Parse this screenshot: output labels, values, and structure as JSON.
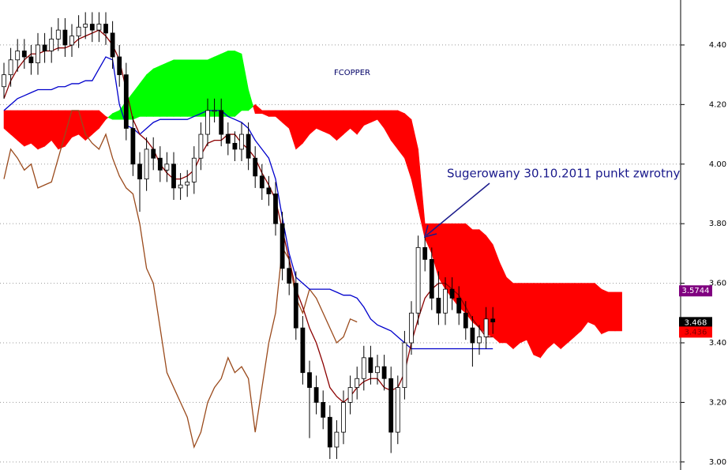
{
  "chart_data": {
    "type": "candlestick",
    "title": "FCOPPER",
    "annotation": "Sugerowany 30.10.2011 punkt zwrotny",
    "ylim": [
      2.973,
      4.551
    ],
    "yticks": [
      {
        "value": 3.0,
        "label": "3.00"
      },
      {
        "value": 3.2,
        "label": "3.20"
      },
      {
        "value": 3.4,
        "label": "3.40"
      },
      {
        "value": 3.6,
        "label": "3.60"
      },
      {
        "value": 3.8,
        "label": "3.80"
      },
      {
        "value": 4.0,
        "label": "4.00"
      },
      {
        "value": 4.2,
        "label": "4.20"
      },
      {
        "value": 4.4,
        "label": "4.40"
      }
    ],
    "grid": true,
    "candles": {
      "open": [
        4.26,
        4.3,
        4.35,
        4.38,
        4.36,
        4.34,
        4.4,
        4.38,
        4.42,
        4.45,
        4.4,
        4.43,
        4.46,
        4.47,
        4.45,
        4.47,
        4.44,
        4.36,
        4.3,
        4.12,
        4.0,
        3.95,
        4.05,
        4.02,
        3.98,
        4.0,
        3.92,
        3.93,
        3.94,
        4.02,
        4.1,
        4.18,
        4.18,
        4.1,
        4.07,
        4.05,
        4.1,
        4.02,
        3.96,
        3.92,
        3.9,
        3.8,
        3.65,
        3.6,
        3.45,
        3.3,
        3.25,
        3.2,
        3.15,
        3.05,
        3.1,
        3.2,
        3.25,
        3.28,
        3.35,
        3.3,
        3.32,
        3.28,
        3.1,
        3.25,
        3.4,
        3.5,
        3.72,
        3.68,
        3.55,
        3.5,
        3.58,
        3.55,
        3.5,
        3.45,
        3.4,
        3.42,
        3.48
      ],
      "high": [
        4.34,
        4.39,
        4.42,
        4.42,
        4.4,
        4.44,
        4.44,
        4.46,
        4.49,
        4.49,
        4.47,
        4.5,
        4.51,
        4.51,
        4.51,
        4.51,
        4.48,
        4.4,
        4.34,
        4.16,
        4.04,
        4.09,
        4.09,
        4.06,
        4.04,
        4.04,
        3.97,
        3.98,
        4.06,
        4.14,
        4.22,
        4.22,
        4.22,
        4.14,
        4.11,
        4.14,
        4.14,
        4.06,
        4.0,
        3.96,
        3.94,
        3.84,
        3.69,
        3.64,
        3.49,
        3.34,
        3.29,
        3.24,
        3.19,
        3.14,
        3.24,
        3.29,
        3.32,
        3.39,
        3.39,
        3.36,
        3.36,
        3.32,
        3.29,
        3.44,
        3.54,
        3.76,
        3.76,
        3.72,
        3.64,
        3.62,
        3.62,
        3.59,
        3.54,
        3.49,
        3.46,
        3.52,
        3.52
      ],
      "low": [
        4.22,
        4.26,
        4.31,
        4.32,
        4.3,
        4.3,
        4.34,
        4.34,
        4.38,
        4.36,
        4.36,
        4.39,
        4.42,
        4.41,
        4.41,
        4.4,
        4.32,
        4.26,
        4.08,
        3.96,
        3.84,
        3.91,
        3.98,
        3.94,
        3.94,
        3.88,
        3.88,
        3.89,
        3.9,
        3.98,
        4.06,
        4.14,
        4.06,
        4.03,
        4.01,
        4.01,
        3.98,
        3.92,
        3.88,
        3.86,
        3.76,
        3.61,
        3.56,
        3.41,
        3.26,
        3.08,
        3.16,
        3.11,
        3.01,
        3.01,
        3.06,
        3.16,
        3.21,
        3.24,
        3.26,
        3.26,
        3.24,
        3.03,
        3.06,
        3.21,
        3.36,
        3.46,
        3.64,
        3.51,
        3.46,
        3.46,
        3.51,
        3.46,
        3.41,
        3.32,
        3.36,
        3.38,
        3.43
      ],
      "close": [
        4.3,
        4.35,
        4.38,
        4.36,
        4.34,
        4.4,
        4.38,
        4.42,
        4.45,
        4.4,
        4.43,
        4.46,
        4.47,
        4.45,
        4.47,
        4.44,
        4.36,
        4.3,
        4.12,
        4.0,
        3.95,
        4.05,
        4.02,
        3.98,
        4.0,
        3.92,
        3.93,
        3.94,
        4.02,
        4.1,
        4.18,
        4.18,
        4.1,
        4.07,
        4.05,
        4.1,
        4.02,
        3.96,
        3.92,
        3.9,
        3.8,
        3.65,
        3.6,
        3.45,
        3.3,
        3.25,
        3.2,
        3.15,
        3.05,
        3.1,
        3.2,
        3.25,
        3.28,
        3.35,
        3.3,
        3.32,
        3.28,
        3.1,
        3.25,
        3.4,
        3.5,
        3.72,
        3.68,
        3.55,
        3.5,
        3.58,
        3.55,
        3.5,
        3.45,
        3.4,
        3.42,
        3.48,
        3.47
      ],
      "up_color": "#ffffff",
      "down_color": "#000000"
    },
    "lines": [
      {
        "color": "#9a4a1c",
        "values": [
          3.95,
          4.05,
          4.02,
          3.98,
          4.0,
          3.92,
          3.93,
          3.94,
          4.02,
          4.1,
          4.18,
          4.18,
          4.1,
          4.07,
          4.05,
          4.1,
          4.02,
          3.96,
          3.92,
          3.9,
          3.8,
          3.65,
          3.6,
          3.45,
          3.3,
          3.25,
          3.2,
          3.15,
          3.05,
          3.1,
          3.2,
          3.25,
          3.28,
          3.35,
          3.3,
          3.32,
          3.28,
          3.1,
          3.25,
          3.4,
          3.5,
          3.72,
          3.68,
          3.55,
          3.5,
          3.58,
          3.55,
          3.5,
          3.45,
          3.4,
          3.42,
          3.48,
          3.47,
          null,
          null,
          null,
          null,
          null,
          null,
          null,
          null,
          null,
          null,
          null,
          null,
          null,
          null,
          null,
          null,
          null,
          null,
          null,
          null,
          null,
          null,
          null,
          null,
          null,
          null,
          null,
          null,
          null,
          null,
          null,
          null,
          null,
          null,
          null,
          null,
          null
        ]
      },
      {
        "color": "#0000cc",
        "values": [
          4.18,
          4.2,
          4.22,
          4.23,
          4.24,
          4.25,
          4.25,
          4.25,
          4.26,
          4.26,
          4.27,
          4.27,
          4.28,
          4.28,
          4.32,
          4.36,
          4.35,
          4.2,
          4.13,
          4.12,
          4.1,
          4.12,
          4.14,
          4.15,
          4.15,
          4.15,
          4.15,
          4.15,
          4.16,
          4.17,
          4.18,
          4.18,
          4.18,
          4.16,
          4.15,
          4.14,
          4.12,
          4.08,
          4.05,
          4.02,
          3.95,
          3.82,
          3.7,
          3.62,
          3.6,
          3.58,
          3.58,
          3.58,
          3.58,
          3.57,
          3.56,
          3.56,
          3.55,
          3.52,
          3.48,
          3.46,
          3.45,
          3.44,
          3.42,
          3.4,
          3.38,
          3.38,
          3.38,
          3.38,
          3.38,
          3.38,
          3.38,
          3.38,
          3.38,
          3.38,
          3.38,
          3.38,
          3.38,
          null,
          null,
          null,
          null,
          null,
          null,
          null,
          null,
          null,
          null,
          null,
          null,
          null,
          null,
          null,
          null,
          null,
          null,
          null
        ]
      },
      {
        "color": "#8b0000",
        "values": [
          4.22,
          4.28,
          4.32,
          4.35,
          4.37,
          4.37,
          4.38,
          4.38,
          4.39,
          4.39,
          4.4,
          4.42,
          4.43,
          4.44,
          4.45,
          4.43,
          4.4,
          4.35,
          4.25,
          4.15,
          4.1,
          4.08,
          4.05,
          4.0,
          3.97,
          3.95,
          3.95,
          3.96,
          3.98,
          4.03,
          4.07,
          4.08,
          4.08,
          4.1,
          4.1,
          4.07,
          4.05,
          4.02,
          3.97,
          3.93,
          3.88,
          3.78,
          3.68,
          3.58,
          3.52,
          3.45,
          3.4,
          3.33,
          3.25,
          3.22,
          3.2,
          3.22,
          3.25,
          3.27,
          3.28,
          3.28,
          3.25,
          3.24,
          3.25,
          3.3,
          3.4,
          3.48,
          3.55,
          3.58,
          3.6,
          3.6,
          3.58,
          3.56,
          3.52,
          3.48,
          3.45,
          3.42,
          3.42,
          null,
          null,
          null,
          null,
          null,
          null,
          null,
          null,
          null,
          null,
          null,
          null,
          null,
          null,
          null,
          null,
          null,
          null,
          null
        ]
      }
    ],
    "cloud": {
      "up_color": "#00ff00",
      "down_color": "#ff0000",
      "span_a": [
        4.12,
        4.1,
        4.08,
        4.06,
        4.07,
        4.05,
        4.06,
        4.08,
        4.05,
        4.06,
        4.09,
        4.1,
        4.08,
        4.1,
        4.12,
        4.15,
        4.17,
        4.18,
        4.21,
        4.24,
        4.27,
        4.3,
        4.32,
        4.33,
        4.34,
        4.35,
        4.35,
        4.35,
        4.35,
        4.35,
        4.35,
        4.36,
        4.37,
        4.38,
        4.38,
        4.37,
        4.25,
        4.17,
        4.17,
        4.16,
        4.16,
        4.14,
        4.12,
        4.05,
        4.07,
        4.1,
        4.12,
        4.11,
        4.1,
        4.08,
        4.1,
        4.12,
        4.1,
        4.13,
        4.14,
        4.15,
        4.12,
        4.08,
        4.05,
        4.02,
        3.95,
        3.85,
        3.75,
        3.7,
        3.62,
        3.58,
        3.55,
        3.52,
        3.5,
        3.47,
        3.45,
        3.43,
        3.42,
        3.4,
        3.4,
        3.38,
        3.4,
        3.41,
        3.36,
        3.35,
        3.38,
        3.4,
        3.38,
        3.4,
        3.42,
        3.44,
        3.47,
        3.46,
        3.43,
        3.44,
        3.44,
        3.44
      ],
      "span_b": [
        4.18,
        4.18,
        4.18,
        4.18,
        4.18,
        4.18,
        4.18,
        4.18,
        4.18,
        4.18,
        4.18,
        4.18,
        4.18,
        4.18,
        4.18,
        4.16,
        4.15,
        4.15,
        4.15,
        4.15,
        4.16,
        4.16,
        4.16,
        4.16,
        4.16,
        4.16,
        4.16,
        4.16,
        4.16,
        4.16,
        4.16,
        4.16,
        4.16,
        4.16,
        4.16,
        4.18,
        4.18,
        4.2,
        4.18,
        4.18,
        4.18,
        4.18,
        4.18,
        4.18,
        4.18,
        4.18,
        4.18,
        4.18,
        4.18,
        4.18,
        4.18,
        4.18,
        4.18,
        4.18,
        4.18,
        4.18,
        4.18,
        4.18,
        4.18,
        4.17,
        4.15,
        4.05,
        3.8,
        3.8,
        3.8,
        3.8,
        3.8,
        3.8,
        3.8,
        3.78,
        3.78,
        3.76,
        3.73,
        3.67,
        3.62,
        3.6,
        3.6,
        3.6,
        3.6,
        3.6,
        3.6,
        3.6,
        3.6,
        3.6,
        3.6,
        3.6,
        3.6,
        3.6,
        3.58,
        3.57,
        3.57,
        3.57
      ]
    },
    "price_markers": [
      {
        "value": 3.5744,
        "color": "#800080",
        "text_color": "#ffffff"
      },
      {
        "value": 3.468,
        "color": "#000000",
        "text_color": "#ffffff"
      },
      {
        "value": 3.436,
        "color": "#ff0000",
        "text_color": "#800000"
      }
    ]
  }
}
